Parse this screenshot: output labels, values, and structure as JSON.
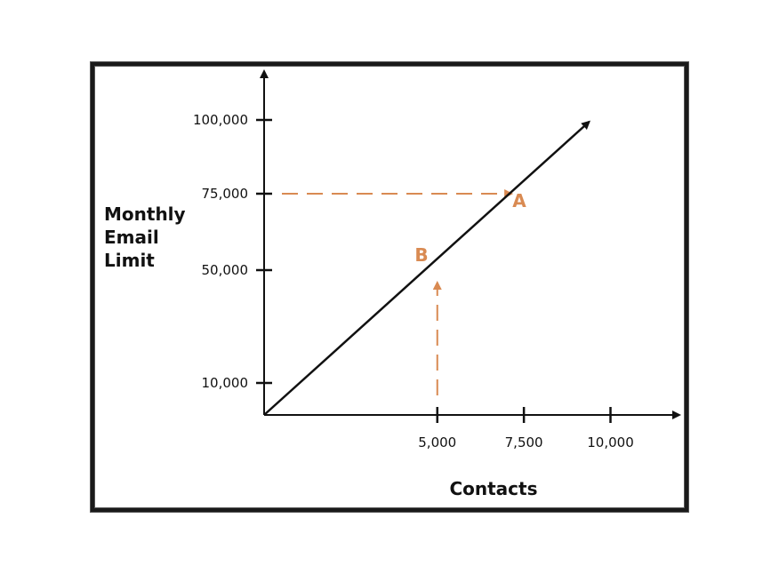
{
  "chart_data": {
    "type": "line",
    "xlabel": "Contacts",
    "ylabel_lines": [
      "Monthly",
      "Email",
      "Limit"
    ],
    "x_ticks": [
      {
        "value": 5000,
        "label": "5,000"
      },
      {
        "value": 7500,
        "label": "7,500"
      },
      {
        "value": 10000,
        "label": "10,000"
      }
    ],
    "y_ticks": [
      {
        "value": 10000,
        "label": "10,000"
      },
      {
        "value": 50000,
        "label": "50,000"
      },
      {
        "value": 75000,
        "label": "75,000"
      },
      {
        "value": 100000,
        "label": "100,000"
      }
    ],
    "series": [
      {
        "x": [
          0,
          10000
        ],
        "y": [
          0,
          100000
        ]
      }
    ],
    "annotations": [
      {
        "label": "A",
        "x": 7500,
        "y": 75000,
        "guide": "horizontal-from-y-axis"
      },
      {
        "label": "B",
        "x": 5000,
        "y": 50000,
        "guide": "vertical-from-x-axis"
      }
    ],
    "colors": {
      "line": "#111111",
      "annotation": "#d98a52"
    }
  }
}
